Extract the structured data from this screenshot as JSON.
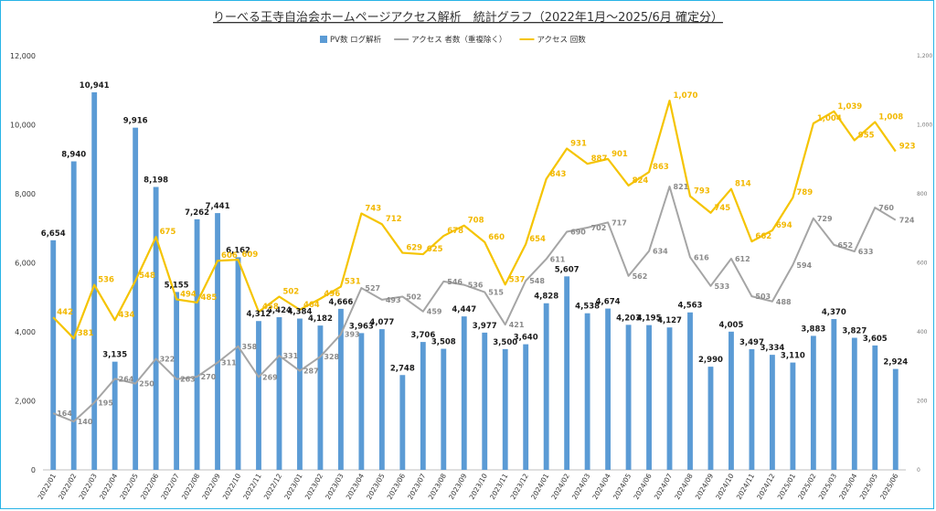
{
  "chart_data": {
    "type": "bar",
    "title": "りーべる王寺自治会ホームページアクセス解析　統計グラフ（2022年1月～2025/6月 確定分）",
    "categories": [
      "2022/01",
      "2022/02",
      "2022/03",
      "2022/04",
      "2022/05",
      "2022/06",
      "2022/07",
      "2022/08",
      "2022/09",
      "2022/10",
      "2022/11",
      "2022/12",
      "2023/01",
      "2023/02",
      "2023/03",
      "2023/04",
      "2023/05",
      "2023/06",
      "2023/07",
      "2023/08",
      "2023/09",
      "2023/10",
      "2023/11",
      "2023/12",
      "2024/01",
      "2024/02",
      "2024/03",
      "2024/04",
      "2024/05",
      "2024/06",
      "2024/07",
      "2024/08",
      "2024/09",
      "2024/10",
      "2024/11",
      "2024/12",
      "2025/01",
      "2025/02",
      "2025/03",
      "2025/04",
      "2025/05",
      "2025/06"
    ],
    "series": [
      {
        "name": "PV数 ログ解析",
        "type": "bar",
        "axis": "left",
        "color": "#5b9bd5",
        "values": [
          6654,
          8940,
          10941,
          3135,
          9916,
          8198,
          5155,
          7262,
          7441,
          6162,
          4312,
          4424,
          4384,
          4182,
          4666,
          3963,
          4077,
          2748,
          3706,
          3508,
          4447,
          3977,
          3500,
          3640,
          4828,
          5607,
          4538,
          4674,
          4203,
          4195,
          4127,
          4563,
          2990,
          4005,
          3497,
          3334,
          3110,
          3883,
          4370,
          3827,
          3605,
          2924
        ]
      },
      {
        "name": "アクセス 者数（重複除く）",
        "type": "line",
        "axis": "right",
        "color": "#a5a5a5",
        "values": [
          164,
          140,
          195,
          264,
          250,
          322,
          263,
          270,
          311,
          358,
          269,
          331,
          287,
          328,
          393,
          527,
          493,
          502,
          459,
          546,
          536,
          515,
          421,
          548,
          611,
          690,
          702,
          717,
          562,
          634,
          821,
          616,
          533,
          612,
          503,
          488,
          594,
          729,
          652,
          633,
          760,
          724
        ]
      },
      {
        "name": "アクセス 回数",
        "type": "line",
        "axis": "right",
        "color": "#f5c400",
        "values": [
          442,
          381,
          536,
          434,
          548,
          675,
          494,
          485,
          606,
          609,
          458,
          502,
          464,
          496,
          531,
          743,
          712,
          629,
          625,
          678,
          708,
          660,
          537,
          654,
          843,
          931,
          887,
          901,
          824,
          863,
          1070,
          793,
          745,
          814,
          662,
          694,
          789,
          1004,
          1039,
          955,
          1008,
          923
        ]
      }
    ],
    "y_left": {
      "ylim": [
        0,
        12000
      ],
      "ticks": [
        "0",
        "2,000",
        "4,000",
        "6,000",
        "8,000",
        "10,000",
        "12,000"
      ]
    },
    "y_right": {
      "ylim": [
        0,
        1200
      ],
      "ticks": [
        "0",
        "200",
        "400",
        "600",
        "800",
        "1,000",
        "1,200"
      ]
    },
    "legend_position": "top-center",
    "grid": false
  }
}
